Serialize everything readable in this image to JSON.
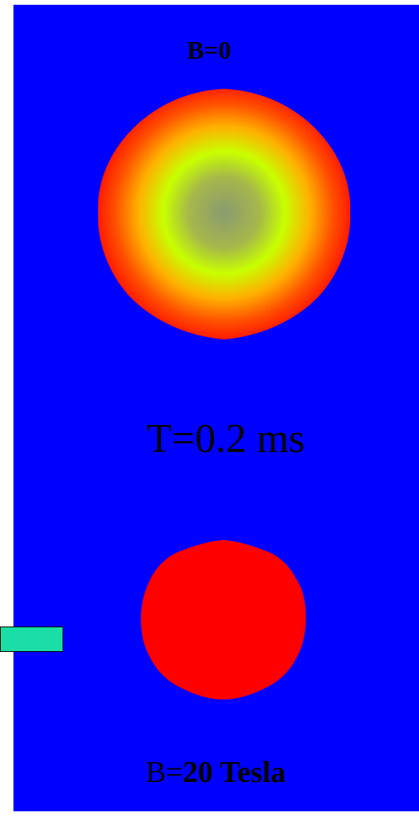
{
  "labels": {
    "top": "B=0",
    "time": "T=0.2 ms",
    "bottom_prefix": "B=",
    "bottom_value": "20",
    "bottom_unit": " Tesla"
  },
  "colors": {
    "background": "#0000ff",
    "plasma_edge": "#ff1a00",
    "plasma_mid": "#ff7a00",
    "plasma_ring": "#c8ff00",
    "plasma_core": "#8a9a70",
    "confined_plasma": "#ff0000",
    "probe": "#1bdda6"
  }
}
